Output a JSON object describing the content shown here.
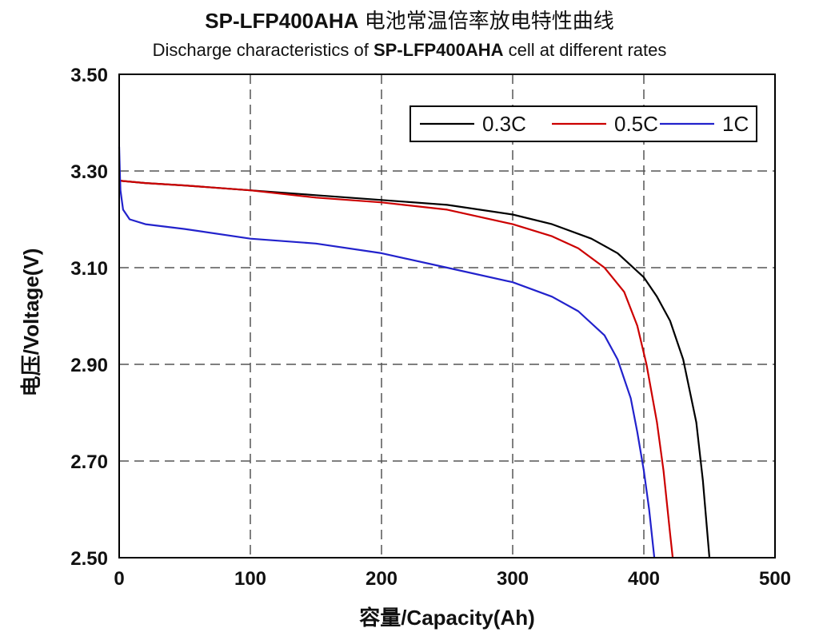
{
  "titles": {
    "line1_model": "SP-LFP400AHA",
    "line1_rest": "电池常温倍率放电特性曲线",
    "line2_pre": "Discharge characteristics of",
    "line2_model": "SP-LFP400AHA",
    "line2_post": "cell at different rates"
  },
  "chart_data": {
    "type": "line",
    "title": "SP-LFP400AHA 电池常温倍率放电特性曲线",
    "subtitle": "Discharge characteristics of SP-LFP400AHA cell at different rates",
    "xlabel": "容量/Capacity(Ah)",
    "ylabel": "电压/Voltage(V)",
    "xlim": [
      0,
      500
    ],
    "ylim": [
      2.5,
      3.5
    ],
    "xticks": [
      "0",
      "100",
      "200",
      "300",
      "400",
      "500"
    ],
    "yticks": [
      "2.50",
      "2.70",
      "2.90",
      "3.10",
      "3.30",
      "3.50"
    ],
    "grid": true,
    "legend_position": "top-right",
    "series": [
      {
        "name": "0.3C",
        "color": "#000000",
        "points": [
          [
            0,
            3.28
          ],
          [
            20,
            3.275
          ],
          [
            50,
            3.27
          ],
          [
            100,
            3.26
          ],
          [
            150,
            3.25
          ],
          [
            200,
            3.24
          ],
          [
            250,
            3.23
          ],
          [
            300,
            3.21
          ],
          [
            330,
            3.19
          ],
          [
            360,
            3.16
          ],
          [
            380,
            3.13
          ],
          [
            400,
            3.08
          ],
          [
            410,
            3.04
          ],
          [
            420,
            2.99
          ],
          [
            430,
            2.91
          ],
          [
            440,
            2.78
          ],
          [
            445,
            2.66
          ],
          [
            450,
            2.5
          ]
        ]
      },
      {
        "name": "0.5C",
        "color": "#cc0000",
        "points": [
          [
            0,
            3.28
          ],
          [
            20,
            3.275
          ],
          [
            50,
            3.27
          ],
          [
            100,
            3.26
          ],
          [
            150,
            3.245
          ],
          [
            200,
            3.235
          ],
          [
            250,
            3.22
          ],
          [
            300,
            3.19
          ],
          [
            330,
            3.165
          ],
          [
            350,
            3.14
          ],
          [
            370,
            3.1
          ],
          [
            385,
            3.05
          ],
          [
            395,
            2.98
          ],
          [
            402,
            2.9
          ],
          [
            410,
            2.78
          ],
          [
            415,
            2.68
          ],
          [
            420,
            2.55
          ],
          [
            422,
            2.5
          ]
        ]
      },
      {
        "name": "1C",
        "color": "#2222cc",
        "points": [
          [
            0,
            3.35
          ],
          [
            0.5,
            3.3
          ],
          [
            1,
            3.26
          ],
          [
            3,
            3.22
          ],
          [
            8,
            3.2
          ],
          [
            20,
            3.19
          ],
          [
            50,
            3.18
          ],
          [
            100,
            3.16
          ],
          [
            150,
            3.15
          ],
          [
            200,
            3.13
          ],
          [
            250,
            3.1
          ],
          [
            300,
            3.07
          ],
          [
            330,
            3.04
          ],
          [
            350,
            3.01
          ],
          [
            370,
            2.96
          ],
          [
            380,
            2.91
          ],
          [
            390,
            2.83
          ],
          [
            395,
            2.76
          ],
          [
            400,
            2.68
          ],
          [
            404,
            2.6
          ],
          [
            408,
            2.5
          ]
        ]
      }
    ]
  }
}
